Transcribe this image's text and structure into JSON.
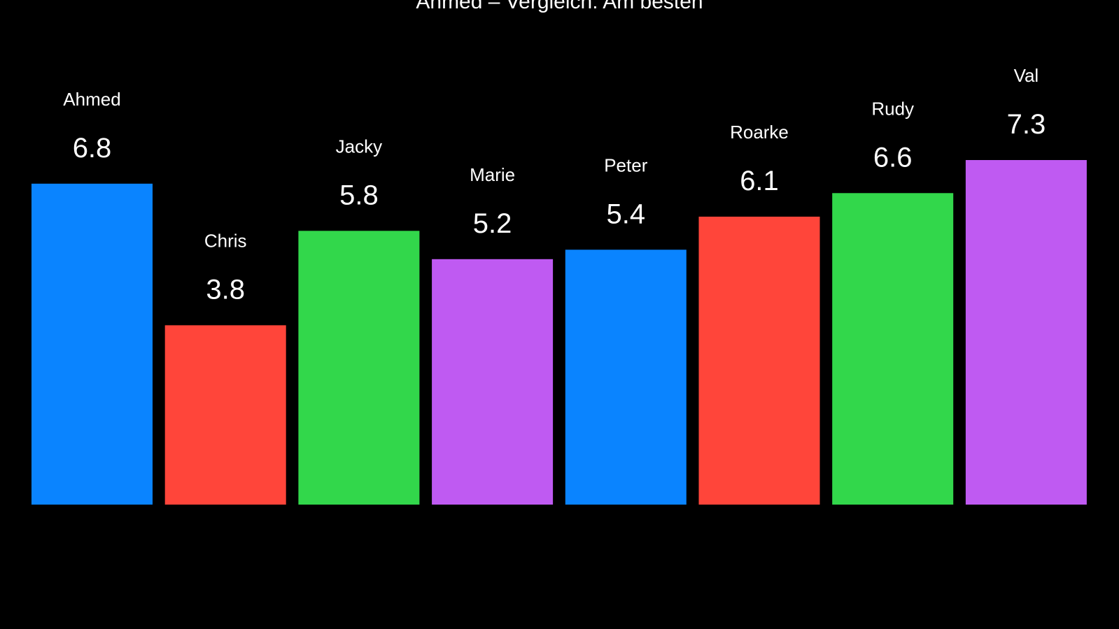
{
  "chart_data": {
    "type": "bar",
    "title": "Ahmed – Vergleich: Am besten",
    "categories": [
      "Ahmed",
      "Chris",
      "Jacky",
      "Marie",
      "Peter",
      "Roarke",
      "Rudy",
      "Val"
    ],
    "values": [
      6.8,
      3.8,
      5.8,
      5.2,
      5.4,
      6.1,
      6.6,
      7.3
    ],
    "value_labels": [
      "6.8",
      "3.8",
      "5.8",
      "5.2",
      "5.4",
      "6.1",
      "6.6",
      "7.3"
    ],
    "colors": [
      "#0a84ff",
      "#ff453a",
      "#32d74b",
      "#bf5af2",
      "#0a84ff",
      "#ff453a",
      "#32d74b",
      "#bf5af2"
    ],
    "xlabel": "",
    "ylabel": "",
    "ylim": [
      0,
      7.3
    ],
    "grid": false,
    "legend": "none"
  }
}
